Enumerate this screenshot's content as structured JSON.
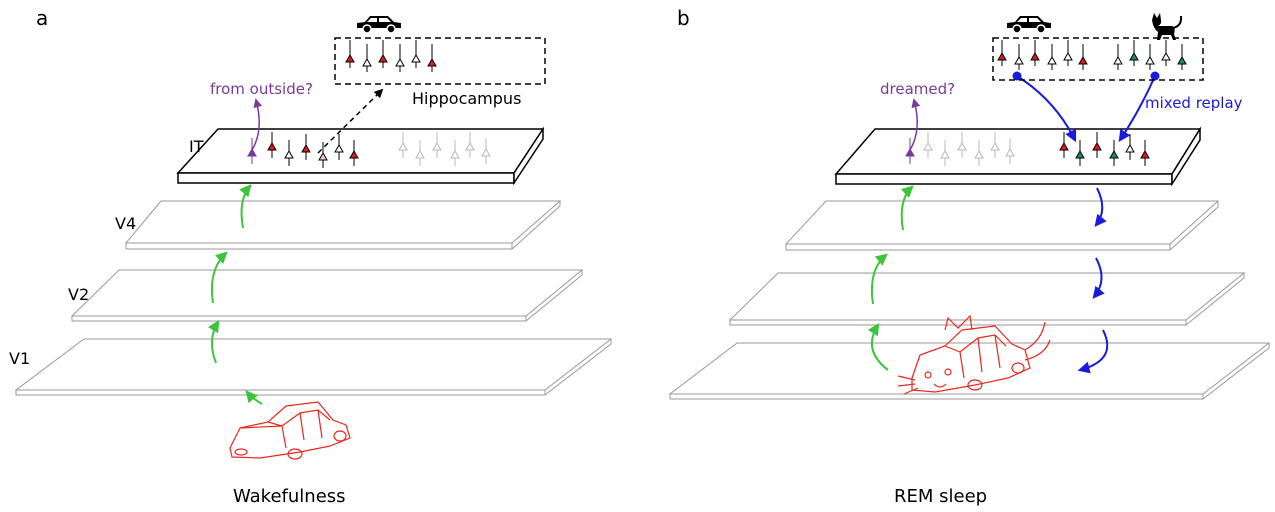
{
  "panels": [
    {
      "letter": "a",
      "caption": "Wakefulness",
      "layers": [
        "IT",
        "V4",
        "V2",
        "V1"
      ],
      "hippocampus_label": "Hippocampus",
      "question_label": "from outside?"
    },
    {
      "letter": "b",
      "caption": "REM sleep",
      "question_label": "dreamed?",
      "replay_label": "mixed replay"
    }
  ],
  "colors": {
    "feedforward_arrow": "#3cc43c",
    "replay_arrow": "#1a1adc",
    "question": "#7a3a9a",
    "car_sketch": "#e8281e",
    "neuron_red": "#e01818",
    "neuron_teal": "#1f8a70",
    "neuron_faded": "#b8b8b8",
    "neuron_pink": "#f0c8c8"
  },
  "icons": [
    "car-icon",
    "cat-icon",
    "car-sketch",
    "car-cat-hybrid-sketch"
  ]
}
